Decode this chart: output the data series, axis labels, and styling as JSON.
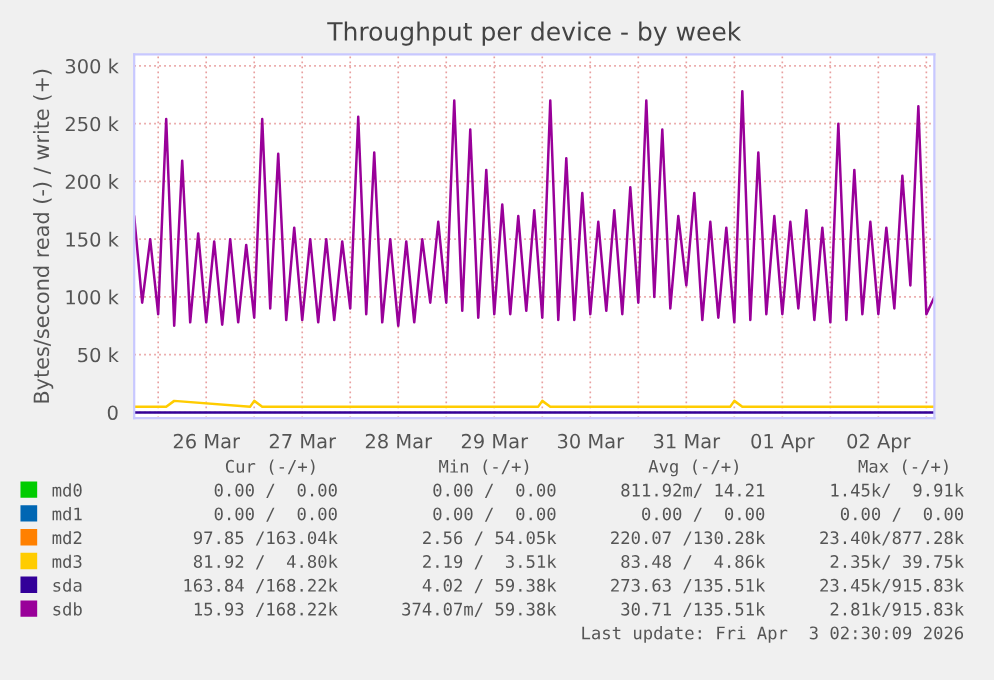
{
  "chart_data": {
    "type": "line",
    "title": "Throughput per device - by week",
    "ylabel": "Bytes/second read (-) / write (+)",
    "x": [
      "2026-03-25T18:00",
      "2026-03-25T20:00",
      "2026-03-25T22:00",
      "2026-03-26T00:00",
      "2026-03-26T02:00",
      "2026-03-26T04:00",
      "2026-03-26T06:00",
      "2026-03-26T08:00",
      "2026-03-26T10:00",
      "2026-03-26T12:00",
      "2026-03-26T14:00",
      "2026-03-26T16:00",
      "2026-03-26T18:00",
      "2026-03-26T20:00",
      "2026-03-26T22:00",
      "2026-03-27T00:00",
      "2026-03-27T02:00",
      "2026-03-27T04:00",
      "2026-03-27T06:00",
      "2026-03-27T08:00",
      "2026-03-27T10:00",
      "2026-03-27T12:00",
      "2026-03-27T14:00",
      "2026-03-27T16:00",
      "2026-03-27T18:00",
      "2026-03-27T20:00",
      "2026-03-27T22:00",
      "2026-03-28T00:00",
      "2026-03-28T02:00",
      "2026-03-28T04:00",
      "2026-03-28T06:00",
      "2026-03-28T08:00",
      "2026-03-28T10:00",
      "2026-03-28T12:00",
      "2026-03-28T14:00",
      "2026-03-28T16:00",
      "2026-03-28T18:00",
      "2026-03-28T20:00",
      "2026-03-28T22:00",
      "2026-03-29T00:00",
      "2026-03-29T02:00",
      "2026-03-29T04:00",
      "2026-03-29T06:00",
      "2026-03-29T08:00",
      "2026-03-29T10:00",
      "2026-03-29T12:00",
      "2026-03-29T14:00",
      "2026-03-29T16:00",
      "2026-03-29T18:00",
      "2026-03-29T20:00",
      "2026-03-29T22:00",
      "2026-03-30T00:00",
      "2026-03-30T02:00",
      "2026-03-30T04:00",
      "2026-03-30T06:00",
      "2026-03-30T08:00",
      "2026-03-30T10:00",
      "2026-03-30T12:00",
      "2026-03-30T14:00",
      "2026-03-30T16:00",
      "2026-03-30T18:00",
      "2026-03-30T20:00",
      "2026-03-30T22:00",
      "2026-03-31T00:00",
      "2026-03-31T02:00",
      "2026-03-31T04:00",
      "2026-03-31T06:00",
      "2026-03-31T08:00",
      "2026-03-31T10:00",
      "2026-03-31T12:00",
      "2026-03-31T14:00",
      "2026-03-31T16:00",
      "2026-03-31T18:00",
      "2026-03-31T20:00",
      "2026-03-31T22:00",
      "2026-04-01T00:00",
      "2026-04-01T02:00",
      "2026-04-01T04:00",
      "2026-04-01T06:00",
      "2026-04-01T08:00",
      "2026-04-01T10:00",
      "2026-04-01T12:00",
      "2026-04-01T14:00",
      "2026-04-01T16:00",
      "2026-04-01T18:00",
      "2026-04-01T20:00",
      "2026-04-01T22:00",
      "2026-04-02T00:00",
      "2026-04-02T02:00",
      "2026-04-02T04:00",
      "2026-04-02T06:00",
      "2026-04-02T08:00",
      "2026-04-02T10:00",
      "2026-04-02T12:00",
      "2026-04-02T14:00",
      "2026-04-02T16:00",
      "2026-04-02T18:00",
      "2026-04-02T20:00",
      "2026-04-02T22:00",
      "2026-04-03T00:00",
      "2026-04-03T02:00"
    ],
    "series": [
      {
        "name": "md0",
        "color": "#00cc00",
        "values": [
          null,
          null,
          null,
          null,
          null,
          null,
          null,
          null,
          null,
          null,
          null,
          null,
          null,
          null,
          null,
          null,
          null,
          null,
          null,
          null,
          null,
          null,
          null,
          null,
          null,
          null,
          null,
          null,
          null,
          null,
          null,
          null,
          null,
          null,
          null,
          null,
          null,
          null,
          null,
          null,
          null,
          null,
          null,
          null,
          null,
          null,
          null,
          null,
          null,
          null,
          null,
          null,
          null,
          null,
          null,
          null,
          null,
          null,
          null,
          null,
          null,
          null,
          null,
          null,
          null,
          null,
          null,
          null,
          null,
          null,
          null,
          null,
          null,
          null,
          null,
          null,
          null,
          null,
          null,
          null,
          null,
          null,
          null,
          null,
          null,
          null,
          null,
          null,
          null,
          null,
          null,
          null,
          null,
          null,
          null,
          null,
          null,
          null,
          null,
          null,
          null
        ]
      },
      {
        "name": "md1",
        "color": "#0066b3",
        "values": [
          null,
          null,
          null,
          null,
          null,
          null,
          null,
          null,
          null,
          null,
          null,
          null,
          null,
          null,
          null,
          null,
          null,
          null,
          null,
          null,
          null,
          null,
          null,
          null,
          null,
          null,
          null,
          null,
          null,
          null,
          null,
          null,
          null,
          null,
          null,
          null,
          null,
          null,
          null,
          null,
          null,
          null,
          null,
          null,
          null,
          null,
          null,
          null,
          null,
          null,
          null,
          null,
          null,
          null,
          null,
          null,
          null,
          null,
          null,
          null,
          null,
          null,
          null,
          null,
          null,
          null,
          null,
          null,
          null,
          null,
          null,
          null,
          null,
          null,
          null,
          null,
          null,
          null,
          null,
          null,
          null,
          null,
          null,
          null,
          null,
          null,
          null,
          null,
          null,
          null,
          null,
          null,
          null,
          null,
          null,
          null,
          null,
          null,
          null,
          null,
          null
        ]
      },
      {
        "name": "md2",
        "color": "#ff8000",
        "values": [
          null,
          null,
          null,
          null,
          null,
          null,
          null,
          null,
          null,
          null,
          null,
          null,
          null,
          null,
          null,
          null,
          null,
          null,
          null,
          null,
          null,
          null,
          null,
          null,
          null,
          null,
          null,
          null,
          null,
          null,
          null,
          null,
          null,
          null,
          null,
          null,
          null,
          null,
          null,
          null,
          null,
          null,
          null,
          null,
          null,
          null,
          null,
          null,
          null,
          null,
          null,
          null,
          null,
          null,
          null,
          null,
          null,
          null,
          null,
          null,
          null,
          null,
          null,
          null,
          null,
          null,
          null,
          null,
          null,
          null,
          null,
          null,
          null,
          null,
          null,
          null,
          null,
          null,
          null,
          null,
          null,
          null,
          null,
          null,
          null,
          null,
          null,
          null,
          null,
          null,
          null,
          null,
          null,
          null,
          null,
          null,
          null,
          null,
          null,
          null,
          null
        ]
      },
      {
        "name": "md3",
        "color": "#ffcc00",
        "x": [
          "2026-03-25T18:00",
          "2026-03-26T02:00",
          "2026-03-26T04:00",
          "2026-03-26T23:00",
          "2026-03-27T00:00",
          "2026-03-27T02:00",
          "2026-03-29T23:00",
          "2026-03-30T00:00",
          "2026-03-30T02:00",
          "2026-03-31T23:00",
          "2026-04-01T00:00",
          "2026-04-01T02:00",
          "2026-04-03T02:00"
        ],
        "values": [
          5000,
          5000,
          10000,
          5000,
          10000,
          5000,
          5000,
          10000,
          5000,
          5000,
          10000,
          5000,
          5000
        ]
      },
      {
        "name": "sda",
        "color": "#330099",
        "x": [
          "2026-03-25T18:00",
          "2026-04-03T02:00"
        ],
        "values": [
          0,
          0
        ]
      },
      {
        "name": "sdb",
        "color": "#990099",
        "values": [
          170000,
          95000,
          150000,
          85000,
          254000,
          75000,
          218000,
          78000,
          155000,
          78000,
          148000,
          76000,
          150000,
          78000,
          145000,
          82000,
          254000,
          90000,
          224000,
          80000,
          160000,
          80000,
          150000,
          78000,
          150000,
          80000,
          148000,
          90000,
          256000,
          85000,
          225000,
          78000,
          150000,
          75000,
          148000,
          78000,
          150000,
          95000,
          165000,
          95000,
          270000,
          88000,
          245000,
          82000,
          210000,
          85000,
          180000,
          85000,
          170000,
          88000,
          175000,
          82000,
          270000,
          80000,
          220000,
          80000,
          190000,
          85000,
          165000,
          88000,
          175000,
          85000,
          195000,
          95000,
          270000,
          100000,
          245000,
          90000,
          170000,
          110000,
          190000,
          80000,
          165000,
          82000,
          160000,
          78000,
          278000,
          80000,
          225000,
          85000,
          170000,
          85000,
          165000,
          90000,
          175000,
          80000,
          160000,
          78000,
          250000,
          80000,
          210000,
          85000,
          165000,
          85000,
          160000,
          90000,
          205000,
          110000,
          265000,
          85000,
          100000
        ]
      }
    ],
    "xlim": [
      "2026-03-25T18:00",
      "2026-04-03T02:00"
    ],
    "xticks": [
      {
        "value": "2026-03-26T00:00",
        "label": null
      },
      {
        "value": "2026-03-26T12:00",
        "label": "26 Mar"
      },
      {
        "value": "2026-03-27T00:00",
        "label": null
      },
      {
        "value": "2026-03-27T12:00",
        "label": "27 Mar"
      },
      {
        "value": "2026-03-28T00:00",
        "label": null
      },
      {
        "value": "2026-03-28T12:00",
        "label": "28 Mar"
      },
      {
        "value": "2026-03-29T00:00",
        "label": null
      },
      {
        "value": "2026-03-29T12:00",
        "label": "29 Mar"
      },
      {
        "value": "2026-03-30T00:00",
        "label": null
      },
      {
        "value": "2026-03-30T12:00",
        "label": "30 Mar"
      },
      {
        "value": "2026-03-31T00:00",
        "label": null
      },
      {
        "value": "2026-03-31T12:00",
        "label": "31 Mar"
      },
      {
        "value": "2026-04-01T00:00",
        "label": null
      },
      {
        "value": "2026-04-01T12:00",
        "label": "01 Apr"
      },
      {
        "value": "2026-04-02T00:00",
        "label": null
      },
      {
        "value": "2026-04-02T12:00",
        "label": "02 Apr"
      },
      {
        "value": "2026-04-03T00:00",
        "label": null
      }
    ],
    "ylim": [
      -5000,
      310000
    ],
    "yticks": [
      0,
      {
        "value": 50000,
        "label": "50 k"
      },
      {
        "value": 100000,
        "label": "100 k"
      },
      {
        "value": 150000,
        "label": "150 k"
      },
      {
        "value": 200000,
        "label": "200 k"
      },
      {
        "value": 250000,
        "label": "250 k"
      },
      {
        "value": 300000,
        "label": "300 k"
      }
    ],
    "grid": true,
    "legend": "bottom",
    "line_style": "solid",
    "annotations": [
      "Cur (-/+)",
      "Min (-/+)",
      "Avg (-/+)",
      "Max (-/+)",
      "0.00 /  0.00",
      "0.00 /  0.00",
      "811.92m/ 14.21",
      "1.45k/  9.91k",
      "0.00 /  0.00",
      "0.00 /  0.00",
      "0.00 /  0.00",
      "0.00 /  0.00",
      "97.85 /163.04k",
      "2.56 / 54.05k",
      "220.07 /130.28k",
      "23.40k/877.28k",
      "81.92 /  4.80k",
      "2.19 /  3.51k",
      "83.48 /  4.86k",
      "2.35k/ 39.75k",
      "163.84 /168.22k",
      "4.02 / 59.38k",
      "273.63 /135.51k",
      "23.45k/915.83k",
      "15.93 /168.22k",
      "374.07m/ 59.38k",
      "30.71 /135.51k",
      "2.81k/915.83k",
      "Last update: Fri Apr  3 02:30:09 2026"
    ]
  }
}
